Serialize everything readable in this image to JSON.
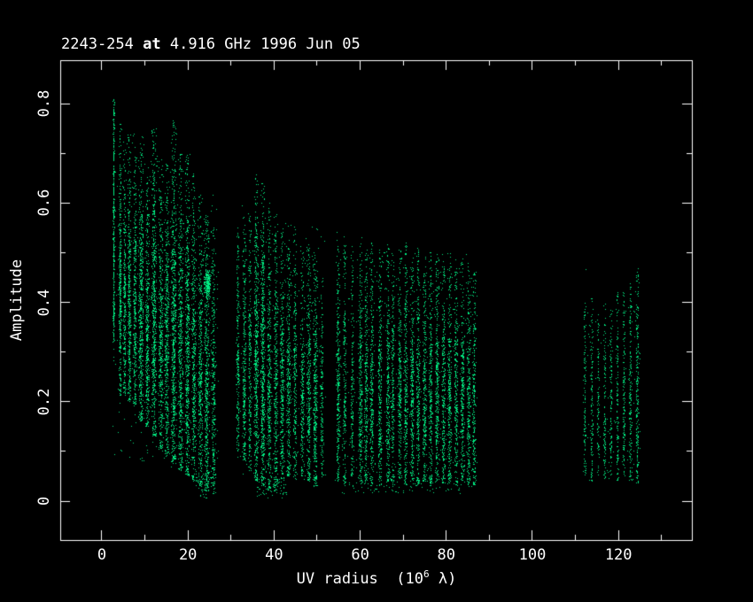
{
  "window": {
    "background": "#000000",
    "foreground": "#ffffff"
  },
  "chart_data": {
    "type": "scatter",
    "title": "2243-254 at 4.916 GHz 1996 Jun 05",
    "title_parts": {
      "source": "2243-254 ",
      "connector": "at",
      "rest": " 4.916 GHz 1996 Jun 05"
    },
    "xlabel_parts": {
      "prefix": "UV radius  (10",
      "sup": "6",
      "suffix": " λ)"
    },
    "ylabel": "Amplitude",
    "xlim": [
      -9.67,
      137.04
    ],
    "ylim": [
      -0.0784,
      0.8877
    ],
    "xticks_major": [
      0,
      20,
      40,
      60,
      80,
      100,
      120
    ],
    "xtick_labels": [
      "0",
      "20",
      "40",
      "60",
      "80",
      "100",
      "120"
    ],
    "xticks_minor": [
      10,
      30,
      50,
      70,
      90,
      110,
      130
    ],
    "yticks_major": [
      0,
      0.2,
      0.4,
      0.6,
      0.8
    ],
    "ytick_labels": [
      "0",
      "0.2",
      "0.4",
      "0.6",
      "0.8"
    ],
    "yticks_minor": [
      0.1,
      0.3,
      0.5,
      0.7
    ],
    "grid": false,
    "legend": null,
    "point_color": "#00ec82",
    "point_size": 1,
    "frame_color": "#ffffff",
    "background": "#000000",
    "seed": 13,
    "stripes_format": [
      "x_center_1e6lambda",
      "x_halfwidth",
      "amp_min",
      "amp_max",
      "n_points",
      "uniform_fraction"
    ],
    "stripes": [
      [
        2.8,
        0.12,
        0.32,
        0.81,
        420,
        0.75
      ],
      [
        4.3,
        0.22,
        0.21,
        0.76,
        380,
        0.3
      ],
      [
        5.3,
        0.25,
        0.21,
        0.71,
        300,
        0.3
      ],
      [
        6.4,
        0.28,
        0.2,
        0.74,
        380,
        0.3
      ],
      [
        7.7,
        0.3,
        0.19,
        0.7,
        340,
        0.3
      ],
      [
        9.1,
        0.45,
        0.16,
        0.72,
        520,
        0.3
      ],
      [
        10.6,
        0.35,
        0.15,
        0.66,
        380,
        0.3
      ],
      [
        12.1,
        0.45,
        0.13,
        0.75,
        560,
        0.3
      ],
      [
        13.7,
        0.4,
        0.1,
        0.7,
        420,
        0.3
      ],
      [
        15.1,
        0.4,
        0.09,
        0.68,
        440,
        0.3
      ],
      [
        16.7,
        0.5,
        0.075,
        0.77,
        620,
        0.3
      ],
      [
        18.3,
        0.45,
        0.06,
        0.7,
        500,
        0.3
      ],
      [
        19.9,
        0.45,
        0.05,
        0.72,
        520,
        0.3
      ],
      [
        21.4,
        0.42,
        0.04,
        0.66,
        440,
        0.3
      ],
      [
        22.9,
        0.42,
        0.03,
        0.62,
        420,
        0.3
      ],
      [
        24.4,
        0.48,
        0.02,
        0.58,
        480,
        0.35
      ],
      [
        25.9,
        0.38,
        0.03,
        0.55,
        320,
        0.3
      ],
      [
        31.6,
        0.28,
        0.1,
        0.55,
        220,
        0.3
      ],
      [
        33.1,
        0.32,
        0.08,
        0.6,
        300,
        0.3
      ],
      [
        34.4,
        0.28,
        0.06,
        0.58,
        240,
        0.3
      ],
      [
        35.9,
        0.42,
        0.04,
        0.66,
        520,
        0.32
      ],
      [
        37.4,
        0.42,
        0.03,
        0.64,
        560,
        0.32
      ],
      [
        38.9,
        0.38,
        0.02,
        0.6,
        380,
        0.3
      ],
      [
        40.4,
        0.38,
        0.02,
        0.58,
        330,
        0.3
      ],
      [
        41.9,
        0.38,
        0.04,
        0.55,
        340,
        0.3
      ],
      [
        43.4,
        0.38,
        0.05,
        0.53,
        320,
        0.3
      ],
      [
        44.9,
        0.34,
        0.04,
        0.55,
        270,
        0.3
      ],
      [
        46.6,
        0.34,
        0.05,
        0.5,
        240,
        0.3
      ],
      [
        48.1,
        0.38,
        0.04,
        0.52,
        330,
        0.3
      ],
      [
        49.6,
        0.42,
        0.03,
        0.5,
        360,
        0.3
      ],
      [
        51.1,
        0.28,
        0.05,
        0.45,
        160,
        0.3
      ],
      [
        54.9,
        0.35,
        0.04,
        0.55,
        300,
        0.32
      ],
      [
        56.4,
        0.3,
        0.03,
        0.54,
        200,
        0.32
      ],
      [
        58.2,
        0.28,
        0.04,
        0.52,
        170,
        0.32
      ],
      [
        60.1,
        0.38,
        0.03,
        0.54,
        320,
        0.32
      ],
      [
        61.4,
        0.32,
        0.04,
        0.52,
        260,
        0.32
      ],
      [
        62.7,
        0.34,
        0.03,
        0.52,
        290,
        0.32
      ],
      [
        64.6,
        0.36,
        0.03,
        0.51,
        300,
        0.32
      ],
      [
        66.5,
        0.34,
        0.04,
        0.52,
        280,
        0.32
      ],
      [
        67.6,
        0.3,
        0.03,
        0.5,
        220,
        0.32
      ],
      [
        69.2,
        0.34,
        0.04,
        0.51,
        280,
        0.32
      ],
      [
        70.6,
        0.34,
        0.03,
        0.52,
        300,
        0.32
      ],
      [
        72.1,
        0.36,
        0.04,
        0.5,
        300,
        0.32
      ],
      [
        73.5,
        0.34,
        0.03,
        0.51,
        280,
        0.32
      ],
      [
        75.0,
        0.36,
        0.04,
        0.5,
        310,
        0.32
      ],
      [
        76.4,
        0.34,
        0.03,
        0.5,
        290,
        0.32
      ],
      [
        77.9,
        0.36,
        0.04,
        0.5,
        310,
        0.32
      ],
      [
        79.4,
        0.34,
        0.03,
        0.49,
        280,
        0.32
      ],
      [
        80.8,
        0.36,
        0.04,
        0.5,
        300,
        0.32
      ],
      [
        82.3,
        0.34,
        0.03,
        0.48,
        270,
        0.32
      ],
      [
        83.8,
        0.36,
        0.04,
        0.48,
        280,
        0.32
      ],
      [
        85.2,
        0.34,
        0.03,
        0.48,
        260,
        0.32
      ],
      [
        86.5,
        0.32,
        0.03,
        0.47,
        240,
        0.32
      ],
      [
        112.2,
        0.22,
        0.05,
        0.4,
        110,
        0.6
      ],
      [
        113.8,
        0.22,
        0.04,
        0.41,
        120,
        0.6
      ],
      [
        115.3,
        0.18,
        0.05,
        0.38,
        90,
        0.6
      ],
      [
        116.8,
        0.22,
        0.04,
        0.4,
        120,
        0.6
      ],
      [
        118.3,
        0.22,
        0.05,
        0.4,
        110,
        0.6
      ],
      [
        119.8,
        0.22,
        0.04,
        0.42,
        130,
        0.6
      ],
      [
        121.3,
        0.22,
        0.05,
        0.42,
        140,
        0.6
      ],
      [
        122.8,
        0.26,
        0.04,
        0.44,
        170,
        0.6
      ],
      [
        124.4,
        0.28,
        0.03,
        0.47,
        210,
        0.55
      ]
    ],
    "blobs_format": [
      "x_center",
      "amp_center",
      "x_sigma",
      "amp_sigma",
      "n_points"
    ],
    "blobs": [
      [
        24.6,
        0.438,
        0.7,
        0.025,
        260
      ]
    ],
    "uniform_regions_format": [
      "x_min",
      "x_max",
      "amp_min",
      "amp_max",
      "n_points"
    ],
    "uniform_regions": [
      [
        2.5,
        11,
        0.08,
        0.74,
        150
      ],
      [
        11,
        19,
        0.06,
        0.7,
        150
      ],
      [
        19,
        27.2,
        0.04,
        0.62,
        130
      ],
      [
        22,
        26.5,
        0.005,
        0.06,
        50
      ],
      [
        31,
        52,
        0.04,
        0.56,
        260
      ],
      [
        36,
        43,
        0.005,
        0.05,
        60
      ],
      [
        54.3,
        87.3,
        0.03,
        0.5,
        420
      ],
      [
        55,
        87,
        0.015,
        0.04,
        70
      ],
      [
        111.8,
        125.5,
        0.04,
        0.4,
        80
      ]
    ],
    "outliers": [
      [
        2.75,
        0.807
      ],
      [
        12.05,
        0.748
      ],
      [
        16.6,
        0.765
      ],
      [
        112.4,
        0.466
      ]
    ]
  }
}
